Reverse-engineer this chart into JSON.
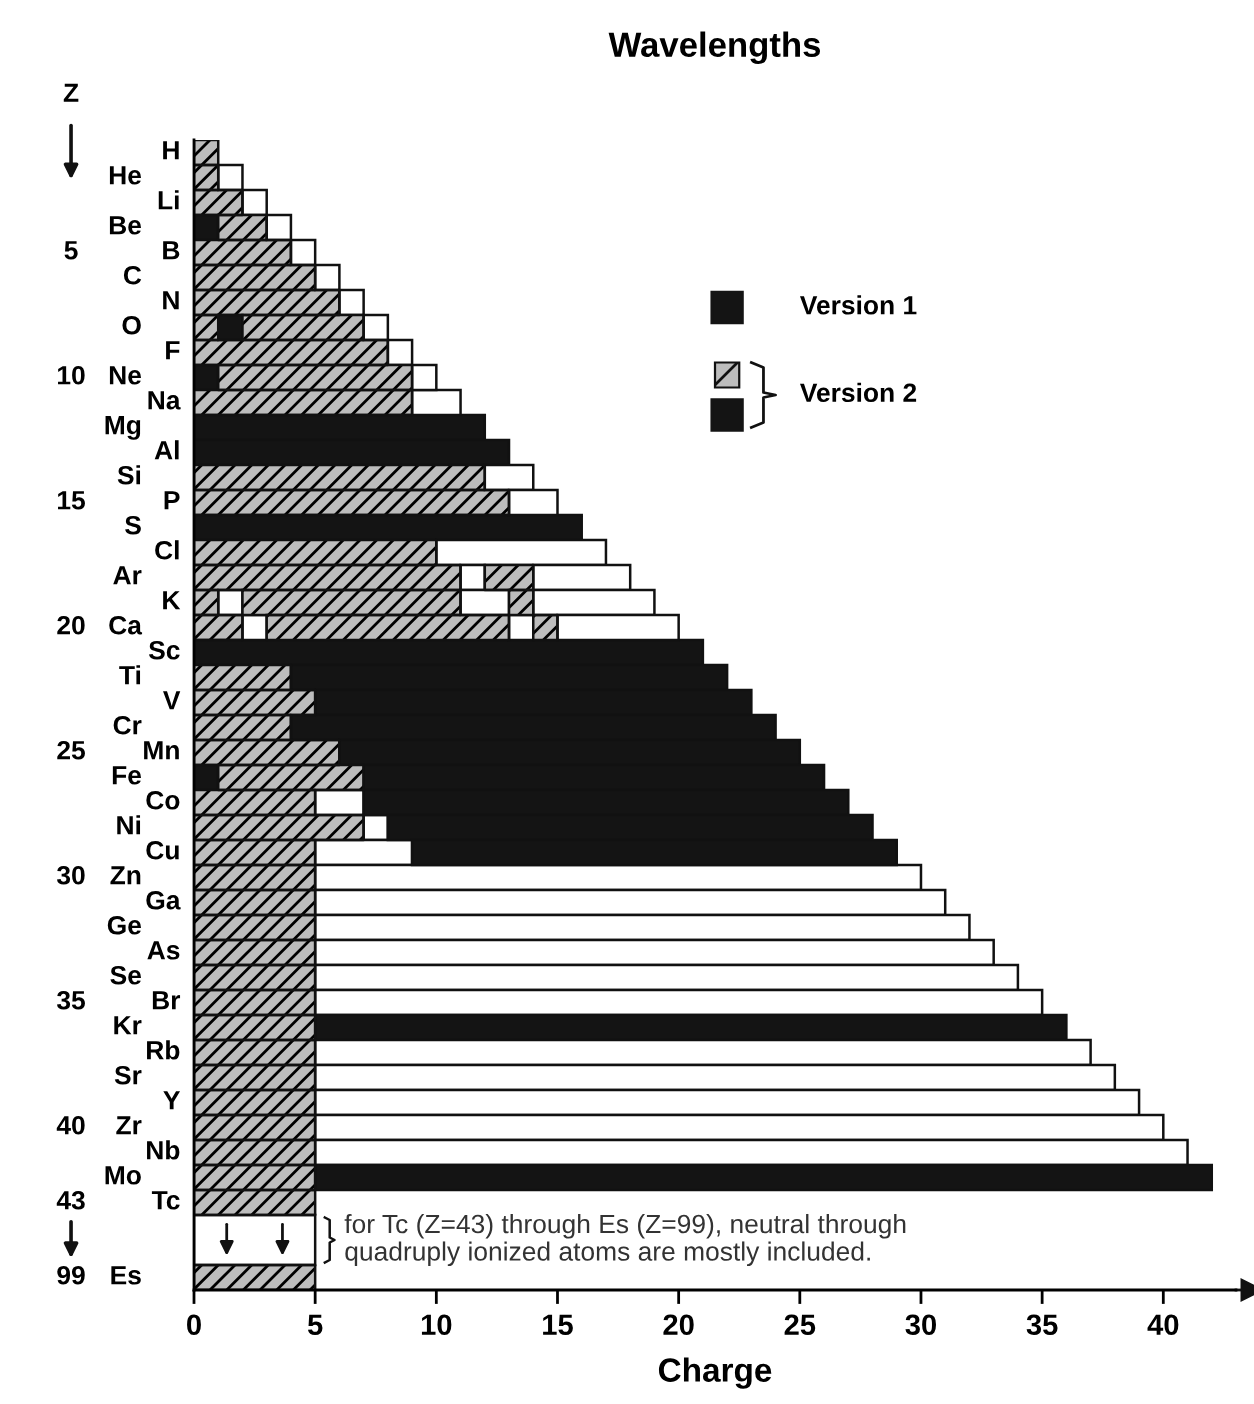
{
  "chart_data": {
    "type": "bar",
    "orientation": "horizontal",
    "stacked": true,
    "title": "Wavelengths",
    "xlabel": "Charge",
    "ylabel": "Z",
    "categories": [
      "H",
      "He",
      "Li",
      "Be",
      "B",
      "C",
      "N",
      "O",
      "F",
      "Ne",
      "Na",
      "Mg",
      "Al",
      "Si",
      "P",
      "S",
      "Cl",
      "Ar",
      "K",
      "Ca",
      "Sc",
      "Ti",
      "V",
      "Cr",
      "Mn",
      "Fe",
      "Co",
      "Ni",
      "Cu",
      "Zn",
      "Ga",
      "Ge",
      "As",
      "Se",
      "Br",
      "Kr",
      "Rb",
      "Sr",
      "Y",
      "Zr",
      "Nb",
      "Mo",
      "Tc",
      null,
      null,
      "Es"
    ],
    "xlim": [
      0,
      43
    ],
    "xticks": [
      0,
      5,
      10,
      15,
      20,
      25,
      30,
      35,
      40
    ],
    "series": [
      {
        "values": [
          1,
          1,
          2,
          1,
          4,
          5,
          6,
          1,
          8,
          1,
          9,
          12,
          13,
          12,
          13,
          16,
          10,
          11,
          1,
          2,
          21,
          4,
          5,
          4,
          6,
          1,
          5,
          7,
          5,
          5,
          5,
          5,
          5,
          5,
          5,
          5,
          5,
          5,
          5,
          5,
          5,
          5,
          5,
          null,
          null,
          5
        ],
        "colors": [
          "#bdbdbd",
          "#bdbdbd",
          "#bdbdbd",
          "#141414",
          "#bdbdbd",
          "#bdbdbd",
          "#bdbdbd",
          "#bdbdbd",
          "#bdbdbd",
          "#141414",
          "#bdbdbd",
          "#141414",
          "#141414",
          "#bdbdbd",
          "#bdbdbd",
          "#141414",
          "#bdbdbd",
          "#bdbdbd",
          "#bdbdbd",
          "#bdbdbd",
          "#141414",
          "#bdbdbd",
          "#bdbdbd",
          "#bdbdbd",
          "#bdbdbd",
          "#141414",
          "#bdbdbd",
          "#bdbdbd",
          "#bdbdbd",
          "#bdbdbd",
          "#bdbdbd",
          "#bdbdbd",
          "#bdbdbd",
          "#bdbdbd",
          "#bdbdbd",
          "#bdbdbd",
          "#bdbdbd",
          "#bdbdbd",
          "#bdbdbd",
          "#bdbdbd",
          "#bdbdbd",
          "#bdbdbd",
          "#bdbdbd",
          null,
          null,
          "#bdbdbd"
        ]
      },
      {
        "values": [
          null,
          1,
          1,
          2,
          1,
          1,
          1,
          1,
          1,
          8,
          2,
          null,
          null,
          2,
          2,
          null,
          7,
          1,
          1,
          1,
          null,
          18,
          18,
          20,
          19,
          6,
          2,
          1,
          4,
          25,
          26,
          27,
          28,
          29,
          30,
          31,
          32,
          33,
          34,
          35,
          36,
          37,
          null,
          null,
          null,
          null
        ],
        "colors": [
          null,
          "#ffffff",
          "#ffffff",
          "#bdbdbd",
          "#ffffff",
          "#ffffff",
          "#ffffff",
          "#141414",
          "#ffffff",
          "#bdbdbd",
          "#ffffff",
          null,
          null,
          "#ffffff",
          "#ffffff",
          null,
          "#ffffff",
          "#ffffff",
          "#ffffff",
          "#ffffff",
          null,
          "#141414",
          "#141414",
          "#141414",
          "#141414",
          "#bdbdbd",
          "#ffffff",
          "#ffffff",
          "#ffffff",
          "#ffffff",
          "#ffffff",
          "#ffffff",
          "#ffffff",
          "#ffffff",
          "#ffffff",
          "#141414",
          "#ffffff",
          "#ffffff",
          "#ffffff",
          "#ffffff",
          "#ffffff",
          "#141414",
          null,
          null,
          null,
          null
        ]
      },
      {
        "values": [
          null,
          null,
          null,
          1,
          null,
          null,
          null,
          5,
          null,
          1,
          null,
          null,
          null,
          null,
          null,
          null,
          null,
          2,
          9,
          10,
          null,
          null,
          null,
          null,
          null,
          19,
          20,
          20,
          20,
          null,
          null,
          null,
          null,
          null,
          null,
          null,
          null,
          null,
          null,
          null,
          null,
          null,
          null,
          null,
          null,
          null
        ],
        "colors": [
          null,
          null,
          null,
          "#ffffff",
          null,
          null,
          null,
          "#bdbdbd",
          null,
          "#ffffff",
          null,
          null,
          null,
          null,
          null,
          null,
          null,
          "#bdbdbd",
          "#bdbdbd",
          "#bdbdbd",
          null,
          null,
          null,
          null,
          null,
          "#141414",
          "#141414",
          "#141414",
          "#141414",
          null,
          null,
          null,
          null,
          null,
          null,
          null,
          null,
          null,
          null,
          null,
          null,
          null,
          null,
          null,
          null,
          null
        ]
      },
      {
        "values": [
          null,
          null,
          null,
          null,
          null,
          null,
          null,
          1,
          null,
          null,
          null,
          null,
          null,
          null,
          null,
          null,
          null,
          4,
          2,
          1,
          null,
          null,
          null,
          null,
          null,
          null,
          null,
          null,
          null,
          null,
          null,
          null,
          null,
          null,
          null,
          null,
          null,
          null,
          null,
          null,
          null,
          null,
          null,
          null,
          null,
          null
        ],
        "colors": [
          null,
          null,
          null,
          null,
          null,
          null,
          null,
          "#ffffff",
          null,
          null,
          null,
          null,
          null,
          null,
          null,
          null,
          null,
          "#ffffff",
          "#ffffff",
          "#ffffff",
          null,
          null,
          null,
          null,
          null,
          null,
          null,
          null,
          null,
          null,
          null,
          null,
          null,
          null,
          null,
          null,
          null,
          null,
          null,
          null,
          null,
          null,
          null,
          null,
          null,
          null
        ]
      },
      {
        "values": [
          null,
          null,
          null,
          null,
          null,
          null,
          null,
          null,
          null,
          null,
          null,
          null,
          null,
          null,
          null,
          null,
          null,
          null,
          1,
          1,
          null,
          null,
          null,
          null,
          null,
          null,
          null,
          null,
          null,
          null,
          null,
          null,
          null,
          null,
          null,
          null,
          null,
          null,
          null,
          null,
          null,
          null,
          null,
          null,
          null,
          null
        ],
        "colors": [
          null,
          null,
          null,
          null,
          null,
          null,
          null,
          null,
          null,
          null,
          null,
          null,
          null,
          null,
          null,
          null,
          null,
          null,
          "#bdbdbd",
          "#bdbdbd",
          null,
          null,
          null,
          null,
          null,
          null,
          null,
          null,
          null,
          null,
          null,
          null,
          null,
          null,
          null,
          null,
          null,
          null,
          null,
          null,
          null,
          null,
          null,
          null,
          null,
          null
        ]
      },
      {
        "values": [
          null,
          null,
          null,
          null,
          null,
          null,
          null,
          null,
          null,
          null,
          null,
          null,
          null,
          null,
          null,
          null,
          null,
          null,
          5,
          5,
          null,
          null,
          null,
          null,
          null,
          null,
          null,
          null,
          null,
          null,
          null,
          null,
          null,
          null,
          null,
          null,
          null,
          null,
          null,
          null,
          null,
          null,
          null,
          null,
          null,
          null
        ],
        "colors": [
          null,
          null,
          null,
          null,
          null,
          null,
          null,
          null,
          null,
          null,
          null,
          null,
          null,
          null,
          null,
          null,
          null,
          null,
          "#ffffff",
          "#ffffff",
          null,
          null,
          null,
          null,
          null,
          null,
          null,
          null,
          null,
          null,
          null,
          null,
          null,
          null,
          null,
          null,
          null,
          null,
          null,
          null,
          null,
          null,
          null,
          null,
          null,
          null
        ]
      }
    ],
    "annotations": [
      "for Tc (Z=43) through Es (Z=99), neutral through\nquadruply ionized atoms are mostly included.",
      "Version 1",
      "Version 2",
      "5",
      "10",
      "15",
      "20",
      "25",
      "30",
      "35",
      "40",
      "43",
      "99"
    ]
  }
}
